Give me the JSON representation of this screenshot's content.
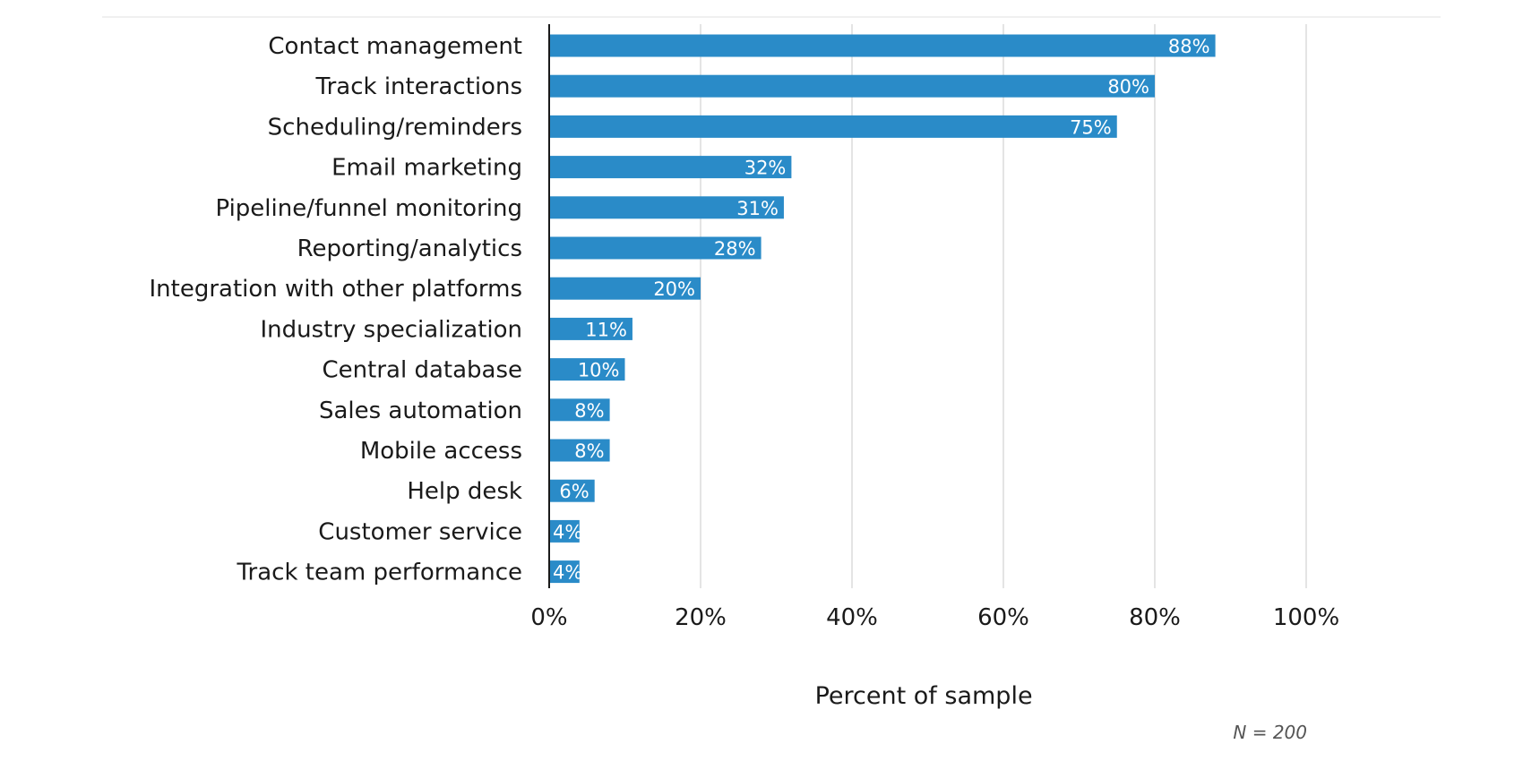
{
  "chart_data": {
    "type": "bar",
    "orientation": "horizontal",
    "categories": [
      "Contact management",
      "Track interactions",
      "Scheduling/reminders",
      "Email marketing",
      "Pipeline/funnel monitoring",
      "Reporting/analytics",
      "Integration with other platforms",
      "Industry specialization",
      "Central database",
      "Sales automation",
      "Mobile access",
      "Help desk",
      "Customer service",
      "Track team performance"
    ],
    "values": [
      88,
      80,
      75,
      32,
      31,
      28,
      20,
      11,
      10,
      8,
      8,
      6,
      4,
      4
    ],
    "data_labels": [
      "88%",
      "80%",
      "75%",
      "32%",
      "31%",
      "28%",
      "20%",
      "11%",
      "10%",
      "8%",
      "8%",
      "6%",
      "4%",
      "4%"
    ],
    "xlim": [
      0,
      100
    ],
    "x_ticks": [
      0,
      20,
      40,
      60,
      80,
      100
    ],
    "x_tick_labels": [
      "0%",
      "20%",
      "40%",
      "60%",
      "80%",
      "100%"
    ],
    "xlabel": "Percent of sample",
    "ylabel": "",
    "title": "",
    "note": "N = 200",
    "grid": true,
    "bar_color": "#2a8bc8",
    "grid_color": "#dcdcdc",
    "axis_color": "#1a1a1a"
  }
}
